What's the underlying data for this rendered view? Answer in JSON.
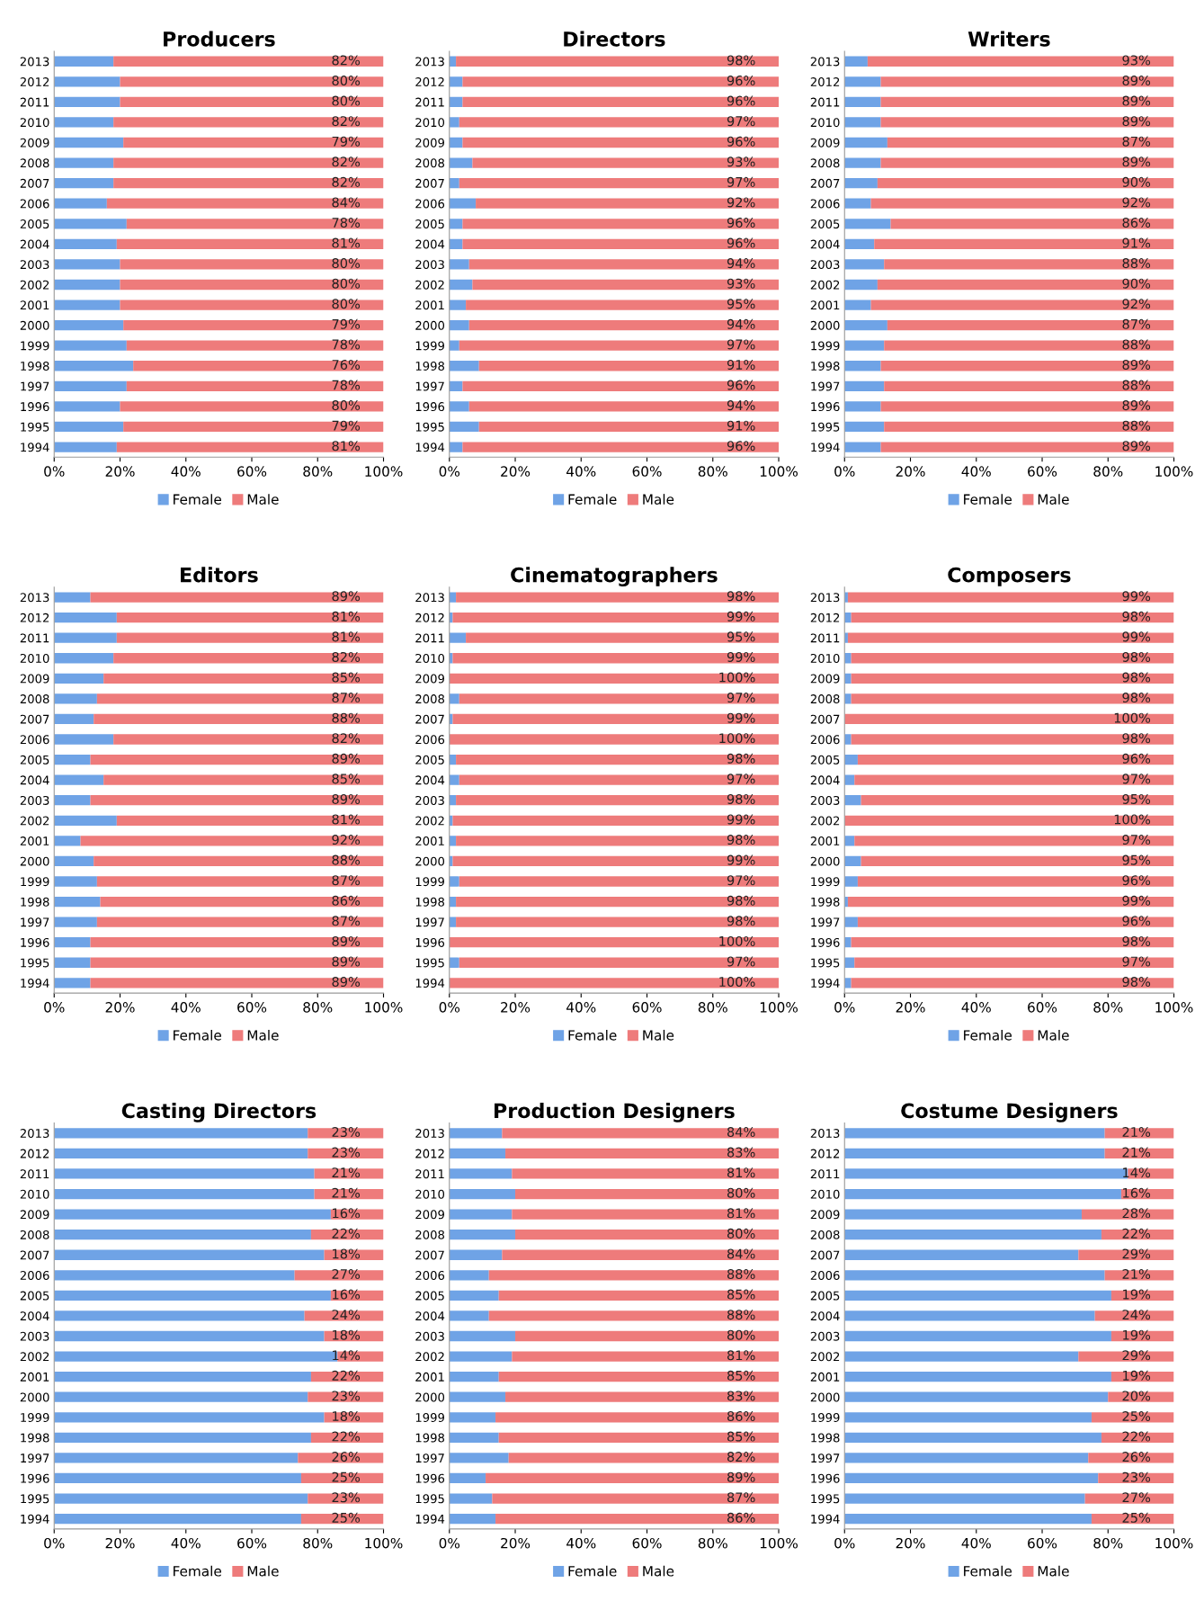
{
  "chart_data": [
    {
      "type": "bar",
      "orientation": "horizontal",
      "stacked": true,
      "title": "Producers",
      "legend": "bottom",
      "categories": [
        "2013",
        "2012",
        "2011",
        "2010",
        "2009",
        "2008",
        "2007",
        "2006",
        "2005",
        "2004",
        "2003",
        "2002",
        "2001",
        "2000",
        "1999",
        "1998",
        "1997",
        "1996",
        "1995",
        "1994"
      ],
      "xlim": [
        0,
        100
      ],
      "xticks": [
        {
          "value": 0,
          "label": "0%"
        },
        {
          "value": 20,
          "label": "20%"
        },
        {
          "value": 40,
          "label": "40%"
        },
        {
          "value": 60,
          "label": "60%"
        },
        {
          "value": 80,
          "label": "80%"
        },
        {
          "value": 100,
          "label": "100%"
        }
      ],
      "series": [
        {
          "name": "Female",
          "color": "#6fa3e6",
          "values": [
            18,
            20,
            20,
            18,
            21,
            18,
            18,
            16,
            22,
            19,
            20,
            20,
            20,
            21,
            22,
            24,
            22,
            20,
            21,
            19
          ]
        },
        {
          "name": "Male",
          "color": "#ee7b7b",
          "values": [
            82,
            80,
            80,
            82,
            79,
            82,
            82,
            84,
            78,
            81,
            80,
            80,
            80,
            79,
            78,
            76,
            78,
            80,
            79,
            81
          ],
          "value_labels": [
            "82%",
            "80%",
            "80%",
            "82%",
            "79%",
            "82%",
            "82%",
            "84%",
            "78%",
            "81%",
            "80%",
            "80%",
            "80%",
            "79%",
            "78%",
            "76%",
            "78%",
            "80%",
            "79%",
            "81%"
          ]
        }
      ]
    },
    {
      "type": "bar",
      "orientation": "horizontal",
      "stacked": true,
      "title": "Directors",
      "legend": "bottom",
      "categories": [
        "2013",
        "2012",
        "2011",
        "2010",
        "2009",
        "2008",
        "2007",
        "2006",
        "2005",
        "2004",
        "2003",
        "2002",
        "2001",
        "2000",
        "1999",
        "1998",
        "1997",
        "1996",
        "1995",
        "1994"
      ],
      "xlim": [
        0,
        100
      ],
      "xticks": [
        {
          "value": 0,
          "label": "0%"
        },
        {
          "value": 20,
          "label": "20%"
        },
        {
          "value": 40,
          "label": "40%"
        },
        {
          "value": 60,
          "label": "60%"
        },
        {
          "value": 80,
          "label": "80%"
        },
        {
          "value": 100,
          "label": "100%"
        }
      ],
      "series": [
        {
          "name": "Female",
          "color": "#6fa3e6",
          "values": [
            2,
            4,
            4,
            3,
            4,
            7,
            3,
            8,
            4,
            4,
            6,
            7,
            5,
            6,
            3,
            9,
            4,
            6,
            9,
            4
          ]
        },
        {
          "name": "Male",
          "color": "#ee7b7b",
          "values": [
            98,
            96,
            96,
            97,
            96,
            93,
            97,
            92,
            96,
            96,
            94,
            93,
            95,
            94,
            97,
            91,
            96,
            94,
            91,
            96
          ],
          "value_labels": [
            "98%",
            "96%",
            "96%",
            "97%",
            "96%",
            "93%",
            "97%",
            "92%",
            "96%",
            "96%",
            "94%",
            "93%",
            "95%",
            "94%",
            "97%",
            "91%",
            "96%",
            "94%",
            "91%",
            "96%"
          ]
        }
      ]
    },
    {
      "type": "bar",
      "orientation": "horizontal",
      "stacked": true,
      "title": "Writers",
      "legend": "bottom",
      "categories": [
        "2013",
        "2012",
        "2011",
        "2010",
        "2009",
        "2008",
        "2007",
        "2006",
        "2005",
        "2004",
        "2003",
        "2002",
        "2001",
        "2000",
        "1999",
        "1998",
        "1997",
        "1996",
        "1995",
        "1994"
      ],
      "xlim": [
        0,
        100
      ],
      "xticks": [
        {
          "value": 0,
          "label": "0%"
        },
        {
          "value": 20,
          "label": "20%"
        },
        {
          "value": 40,
          "label": "40%"
        },
        {
          "value": 60,
          "label": "60%"
        },
        {
          "value": 80,
          "label": "80%"
        },
        {
          "value": 100,
          "label": "100%"
        }
      ],
      "series": [
        {
          "name": "Female",
          "color": "#6fa3e6",
          "values": [
            7,
            11,
            11,
            11,
            13,
            11,
            10,
            8,
            14,
            9,
            12,
            10,
            8,
            13,
            12,
            11,
            12,
            11,
            12,
            11
          ]
        },
        {
          "name": "Male",
          "color": "#ee7b7b",
          "values": [
            93,
            89,
            89,
            89,
            87,
            89,
            90,
            92,
            86,
            91,
            88,
            90,
            92,
            87,
            88,
            89,
            88,
            89,
            88,
            89
          ],
          "value_labels": [
            "93%",
            "89%",
            "89%",
            "89%",
            "87%",
            "89%",
            "90%",
            "92%",
            "86%",
            "91%",
            "88%",
            "90%",
            "92%",
            "87%",
            "88%",
            "89%",
            "88%",
            "89%",
            "88%",
            "89%"
          ]
        }
      ]
    },
    {
      "type": "bar",
      "orientation": "horizontal",
      "stacked": true,
      "title": "Editors",
      "legend": "bottom",
      "categories": [
        "2013",
        "2012",
        "2011",
        "2010",
        "2009",
        "2008",
        "2007",
        "2006",
        "2005",
        "2004",
        "2003",
        "2002",
        "2001",
        "2000",
        "1999",
        "1998",
        "1997",
        "1996",
        "1995",
        "1994"
      ],
      "xlim": [
        0,
        100
      ],
      "xticks": [
        {
          "value": 0,
          "label": "0%"
        },
        {
          "value": 20,
          "label": "20%"
        },
        {
          "value": 40,
          "label": "40%"
        },
        {
          "value": 60,
          "label": "60%"
        },
        {
          "value": 80,
          "label": "80%"
        },
        {
          "value": 100,
          "label": "100%"
        }
      ],
      "series": [
        {
          "name": "Female",
          "color": "#6fa3e6",
          "values": [
            11,
            19,
            19,
            18,
            15,
            13,
            12,
            18,
            11,
            15,
            11,
            19,
            8,
            12,
            13,
            14,
            13,
            11,
            11,
            11
          ]
        },
        {
          "name": "Male",
          "color": "#ee7b7b",
          "values": [
            89,
            81,
            81,
            82,
            85,
            87,
            88,
            82,
            89,
            85,
            89,
            81,
            92,
            88,
            87,
            86,
            87,
            89,
            89,
            89
          ],
          "value_labels": [
            "89%",
            "81%",
            "81%",
            "82%",
            "85%",
            "87%",
            "88%",
            "82%",
            "89%",
            "85%",
            "89%",
            "81%",
            "92%",
            "88%",
            "87%",
            "86%",
            "87%",
            "89%",
            "89%",
            "89%"
          ]
        }
      ]
    },
    {
      "type": "bar",
      "orientation": "horizontal",
      "stacked": true,
      "title": "Cinematographers",
      "legend": "bottom",
      "categories": [
        "2013",
        "2012",
        "2011",
        "2010",
        "2009",
        "2008",
        "2007",
        "2006",
        "2005",
        "2004",
        "2003",
        "2002",
        "2001",
        "2000",
        "1999",
        "1998",
        "1997",
        "1996",
        "1995",
        "1994"
      ],
      "xlim": [
        0,
        100
      ],
      "xticks": [
        {
          "value": 0,
          "label": "0%"
        },
        {
          "value": 20,
          "label": "20%"
        },
        {
          "value": 40,
          "label": "40%"
        },
        {
          "value": 60,
          "label": "60%"
        },
        {
          "value": 80,
          "label": "80%"
        },
        {
          "value": 100,
          "label": "100%"
        }
      ],
      "series": [
        {
          "name": "Female",
          "color": "#6fa3e6",
          "values": [
            2,
            1,
            5,
            1,
            0,
            3,
            1,
            0,
            2,
            3,
            2,
            1,
            2,
            1,
            3,
            2,
            2,
            0,
            3,
            0
          ]
        },
        {
          "name": "Male",
          "color": "#ee7b7b",
          "values": [
            98,
            99,
            95,
            99,
            100,
            97,
            99,
            100,
            98,
            97,
            98,
            99,
            98,
            99,
            97,
            98,
            98,
            100,
            97,
            100
          ],
          "value_labels": [
            "98%",
            "99%",
            "95%",
            "99%",
            "100%",
            "97%",
            "99%",
            "100%",
            "98%",
            "97%",
            "98%",
            "99%",
            "98%",
            "99%",
            "97%",
            "98%",
            "98%",
            "100%",
            "97%",
            "100%"
          ]
        }
      ]
    },
    {
      "type": "bar",
      "orientation": "horizontal",
      "stacked": true,
      "title": "Composers",
      "legend": "bottom",
      "categories": [
        "2013",
        "2012",
        "2011",
        "2010",
        "2009",
        "2008",
        "2007",
        "2006",
        "2005",
        "2004",
        "2003",
        "2002",
        "2001",
        "2000",
        "1999",
        "1998",
        "1997",
        "1996",
        "1995",
        "1994"
      ],
      "xlim": [
        0,
        100
      ],
      "xticks": [
        {
          "value": 0,
          "label": "0%"
        },
        {
          "value": 20,
          "label": "20%"
        },
        {
          "value": 40,
          "label": "40%"
        },
        {
          "value": 60,
          "label": "60%"
        },
        {
          "value": 80,
          "label": "80%"
        },
        {
          "value": 100,
          "label": "100%"
        }
      ],
      "series": [
        {
          "name": "Female",
          "color": "#6fa3e6",
          "values": [
            1,
            2,
            1,
            2,
            2,
            2,
            0,
            2,
            4,
            3,
            5,
            0,
            3,
            5,
            4,
            1,
            4,
            2,
            3,
            2
          ]
        },
        {
          "name": "Male",
          "color": "#ee7b7b",
          "values": [
            99,
            98,
            99,
            98,
            98,
            98,
            100,
            98,
            96,
            97,
            95,
            100,
            97,
            95,
            96,
            99,
            96,
            98,
            97,
            98
          ],
          "value_labels": [
            "99%",
            "98%",
            "99%",
            "98%",
            "98%",
            "98%",
            "100%",
            "98%",
            "96%",
            "97%",
            "95%",
            "100%",
            "97%",
            "95%",
            "96%",
            "99%",
            "96%",
            "98%",
            "97%",
            "98%"
          ]
        }
      ]
    },
    {
      "type": "bar",
      "orientation": "horizontal",
      "stacked": true,
      "title": "Casting Directors",
      "legend": "bottom",
      "categories": [
        "2013",
        "2012",
        "2011",
        "2010",
        "2009",
        "2008",
        "2007",
        "2006",
        "2005",
        "2004",
        "2003",
        "2002",
        "2001",
        "2000",
        "1999",
        "1998",
        "1997",
        "1996",
        "1995",
        "1994"
      ],
      "xlim": [
        0,
        100
      ],
      "xticks": [
        {
          "value": 0,
          "label": "0%"
        },
        {
          "value": 20,
          "label": "20%"
        },
        {
          "value": 40,
          "label": "40%"
        },
        {
          "value": 60,
          "label": "60%"
        },
        {
          "value": 80,
          "label": "80%"
        },
        {
          "value": 100,
          "label": "100%"
        }
      ],
      "series": [
        {
          "name": "Female",
          "color": "#6fa3e6",
          "values": [
            77,
            77,
            79,
            79,
            84,
            78,
            82,
            73,
            84,
            76,
            82,
            86,
            78,
            77,
            82,
            78,
            74,
            75,
            77,
            75
          ]
        },
        {
          "name": "Male",
          "color": "#ee7b7b",
          "values": [
            23,
            23,
            21,
            21,
            16,
            22,
            18,
            27,
            16,
            24,
            18,
            14,
            22,
            23,
            18,
            22,
            26,
            25,
            23,
            25
          ],
          "value_labels": [
            "23%",
            "23%",
            "21%",
            "21%",
            "16%",
            "22%",
            "18%",
            "27%",
            "16%",
            "24%",
            "18%",
            "14%",
            "22%",
            "23%",
            "18%",
            "22%",
            "26%",
            "25%",
            "23%",
            "25%"
          ]
        }
      ]
    },
    {
      "type": "bar",
      "orientation": "horizontal",
      "stacked": true,
      "title": "Production Designers",
      "legend": "bottom",
      "categories": [
        "2013",
        "2012",
        "2011",
        "2010",
        "2009",
        "2008",
        "2007",
        "2006",
        "2005",
        "2004",
        "2003",
        "2002",
        "2001",
        "2000",
        "1999",
        "1998",
        "1997",
        "1996",
        "1995",
        "1994"
      ],
      "xlim": [
        0,
        100
      ],
      "xticks": [
        {
          "value": 0,
          "label": "0%"
        },
        {
          "value": 20,
          "label": "20%"
        },
        {
          "value": 40,
          "label": "40%"
        },
        {
          "value": 60,
          "label": "60%"
        },
        {
          "value": 80,
          "label": "80%"
        },
        {
          "value": 100,
          "label": "100%"
        }
      ],
      "series": [
        {
          "name": "Female",
          "color": "#6fa3e6",
          "values": [
            16,
            17,
            19,
            20,
            19,
            20,
            16,
            12,
            15,
            12,
            20,
            19,
            15,
            17,
            14,
            15,
            18,
            11,
            13,
            14
          ]
        },
        {
          "name": "Male",
          "color": "#ee7b7b",
          "values": [
            84,
            83,
            81,
            80,
            81,
            80,
            84,
            88,
            85,
            88,
            80,
            81,
            85,
            83,
            86,
            85,
            82,
            89,
            87,
            86
          ],
          "value_labels": [
            "84%",
            "83%",
            "81%",
            "80%",
            "81%",
            "80%",
            "84%",
            "88%",
            "85%",
            "88%",
            "80%",
            "81%",
            "85%",
            "83%",
            "86%",
            "85%",
            "82%",
            "89%",
            "87%",
            "86%"
          ]
        }
      ]
    },
    {
      "type": "bar",
      "orientation": "horizontal",
      "stacked": true,
      "title": "Costume Designers",
      "legend": "bottom",
      "categories": [
        "2013",
        "2012",
        "2011",
        "2010",
        "2009",
        "2008",
        "2007",
        "2006",
        "2005",
        "2004",
        "2003",
        "2002",
        "2001",
        "2000",
        "1999",
        "1998",
        "1997",
        "1996",
        "1995",
        "1994"
      ],
      "xlim": [
        0,
        100
      ],
      "xticks": [
        {
          "value": 0,
          "label": "0%"
        },
        {
          "value": 20,
          "label": "20%"
        },
        {
          "value": 40,
          "label": "40%"
        },
        {
          "value": 60,
          "label": "60%"
        },
        {
          "value": 80,
          "label": "80%"
        },
        {
          "value": 100,
          "label": "100%"
        }
      ],
      "series": [
        {
          "name": "Female",
          "color": "#6fa3e6",
          "values": [
            79,
            79,
            86,
            84,
            72,
            78,
            71,
            79,
            81,
            76,
            81,
            71,
            81,
            80,
            75,
            78,
            74,
            77,
            73,
            75
          ]
        },
        {
          "name": "Male",
          "color": "#ee7b7b",
          "values": [
            21,
            21,
            14,
            16,
            28,
            22,
            29,
            21,
            19,
            24,
            19,
            29,
            19,
            20,
            25,
            22,
            26,
            23,
            27,
            25
          ],
          "value_labels": [
            "21%",
            "21%",
            "14%",
            "16%",
            "28%",
            "22%",
            "29%",
            "21%",
            "19%",
            "24%",
            "19%",
            "29%",
            "19%",
            "20%",
            "25%",
            "22%",
            "26%",
            "23%",
            "27%",
            "25%"
          ]
        }
      ]
    }
  ]
}
